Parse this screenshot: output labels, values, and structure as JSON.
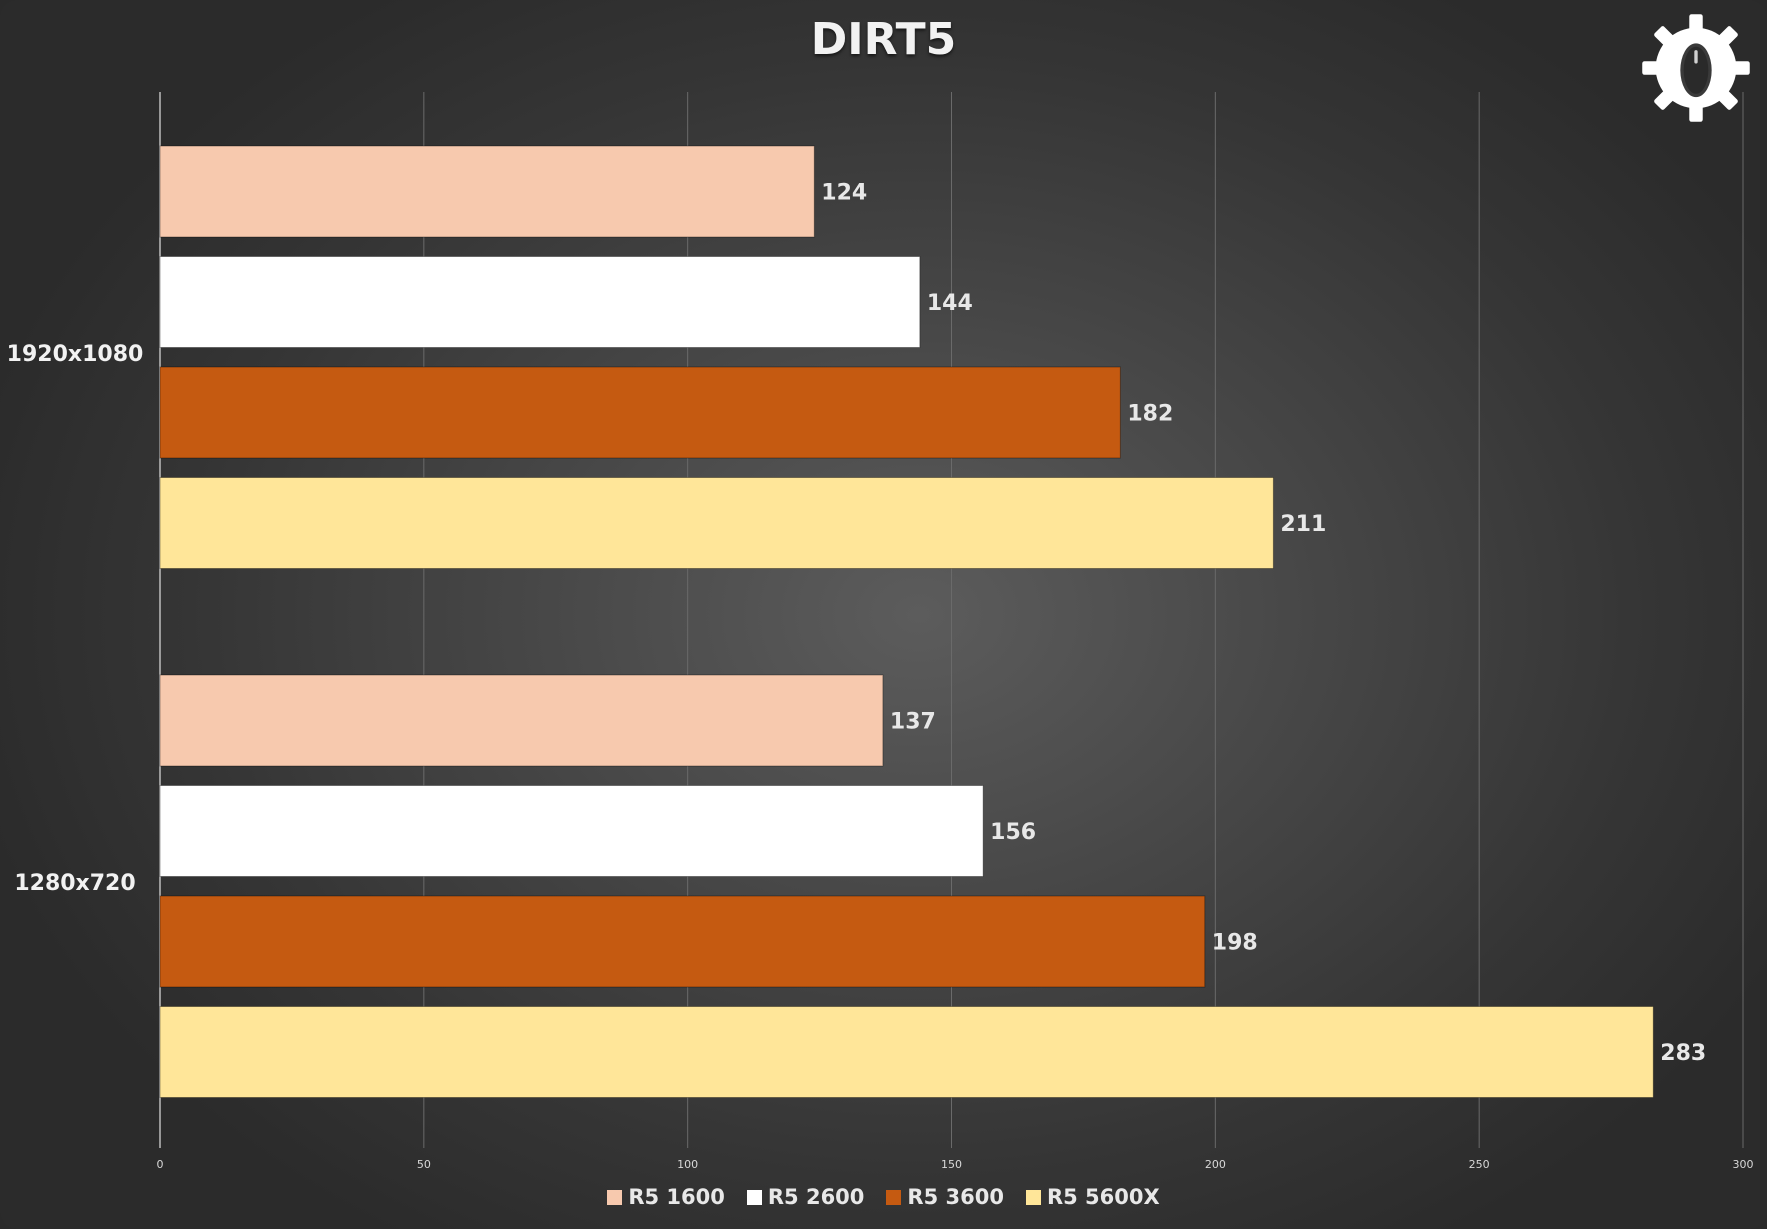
{
  "chart_data": {
    "type": "bar",
    "orientation": "horizontal",
    "title": "DIRT5",
    "categories": [
      "1920x1080",
      "1280x720"
    ],
    "series": [
      {
        "name": "R5 1600",
        "color": "#f7c9ae",
        "values": [
          124,
          137
        ]
      },
      {
        "name": "R5 2600",
        "color": "#ffffff",
        "values": [
          144,
          156
        ]
      },
      {
        "name": "R5 3600",
        "color": "#c55a11",
        "values": [
          182,
          198
        ]
      },
      {
        "name": "R5 5600X",
        "color": "#ffe699",
        "values": [
          211,
          283
        ]
      }
    ],
    "xlim": [
      0,
      300
    ],
    "xticks": [
      "0",
      "50",
      "100",
      "150",
      "200",
      "250",
      "300"
    ],
    "grid": true,
    "legend_position": "bottom"
  },
  "logo": {
    "icon": "gear-mouse-icon"
  }
}
